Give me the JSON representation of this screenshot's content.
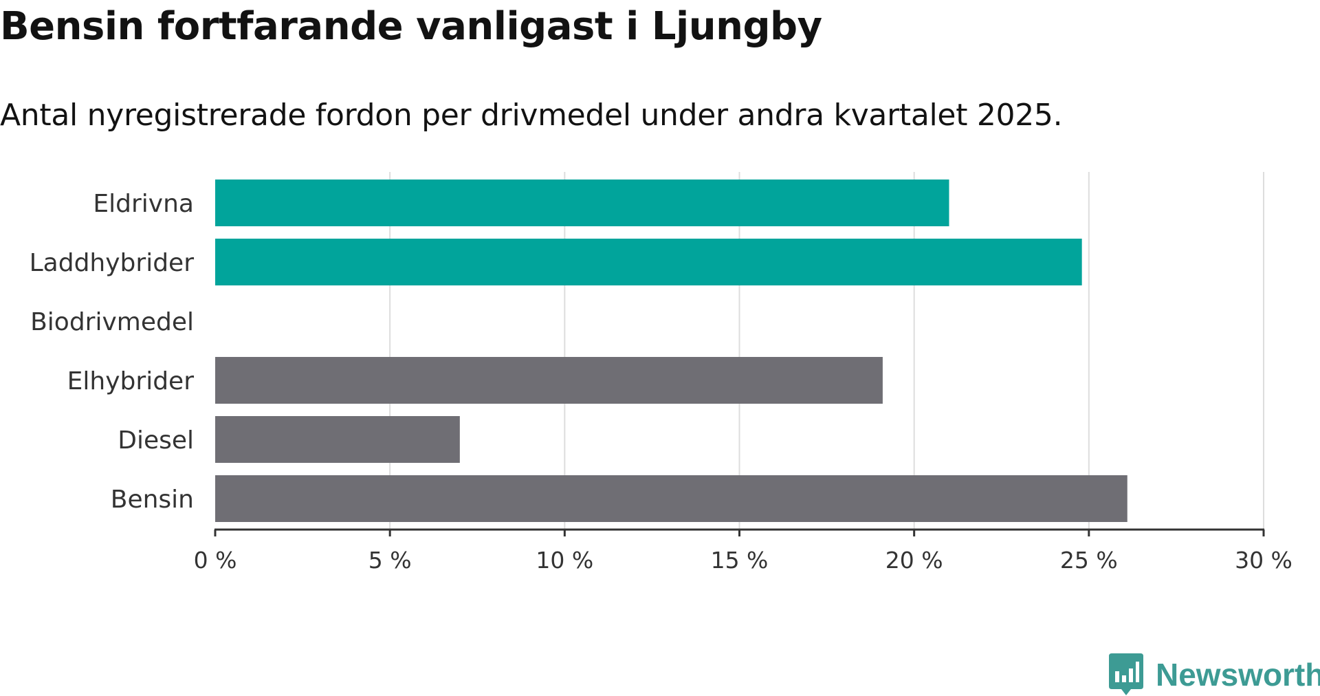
{
  "title": "Bensin fortfarande vanligast i Ljungby",
  "subtitle": "Antal nyregistrerade fordon per drivmedel under andra kvartalet 2025.",
  "brand": "Newsworthy",
  "colors": {
    "highlight": "#01a49b",
    "default": "#6f6e74",
    "grid": "#dddddd",
    "axis": "#333333",
    "brand": "#3d9b94"
  },
  "chart_data": {
    "type": "bar",
    "orientation": "horizontal",
    "title": "Bensin fortfarande vanligast i Ljungby",
    "subtitle": "Antal nyregistrerade fordon per drivmedel under andra kvartalet 2025.",
    "categories": [
      "Eldrivna",
      "Laddhybrider",
      "Biodrivmedel",
      "Elhybrider",
      "Diesel",
      "Bensin"
    ],
    "values": [
      21.0,
      24.8,
      0,
      19.1,
      7.0,
      26.1
    ],
    "highlighted": [
      true,
      true,
      false,
      false,
      false,
      false
    ],
    "xlim": [
      0,
      30
    ],
    "ticks": [
      0,
      5,
      10,
      15,
      20,
      25,
      30
    ],
    "tick_labels": [
      "0 %",
      "5 %",
      "10 %",
      "15 %",
      "20 %",
      "25 %",
      "30 %"
    ],
    "grid": true,
    "xlabel": "",
    "ylabel": ""
  }
}
